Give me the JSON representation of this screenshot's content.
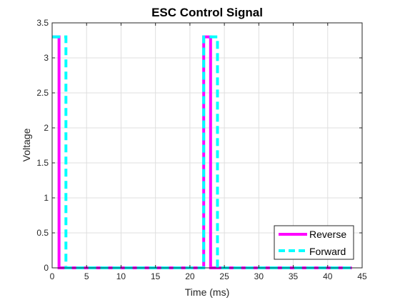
{
  "chart_data": {
    "type": "line",
    "title": "ESC Control Signal",
    "xlabel": "Time (ms)",
    "ylabel": "Voltage",
    "xlim": [
      0,
      45
    ],
    "ylim": [
      0,
      3.5
    ],
    "xticks": [
      0,
      5,
      10,
      15,
      20,
      25,
      30,
      35,
      40,
      45
    ],
    "yticks": [
      0,
      0.5,
      1,
      1.5,
      2,
      2.5,
      3,
      3.5
    ],
    "xtick_labels": [
      "0",
      "5",
      "10",
      "15",
      "20",
      "25",
      "30",
      "35",
      "40",
      "45"
    ],
    "ytick_labels": [
      "0",
      "0.5",
      "1",
      "1.5",
      "2",
      "2.5",
      "3",
      "3.5"
    ],
    "grid": true,
    "legend_position": "bottom-right",
    "series": [
      {
        "name": "Reverse",
        "color": "#ff00ff",
        "line_style": "solid",
        "x": [
          0,
          1,
          1,
          2,
          2,
          22,
          22,
          23,
          23,
          43.5
        ],
        "y": [
          3.3,
          3.3,
          0,
          0,
          0,
          0,
          3.3,
          3.3,
          0,
          0
        ]
      },
      {
        "name": "Forward",
        "color": "#00ffff",
        "line_style": "dashed",
        "x": [
          0,
          2,
          2,
          22,
          22,
          24,
          24,
          43.5
        ],
        "y": [
          3.3,
          3.3,
          0,
          0,
          3.3,
          3.3,
          0,
          0
        ]
      }
    ]
  }
}
